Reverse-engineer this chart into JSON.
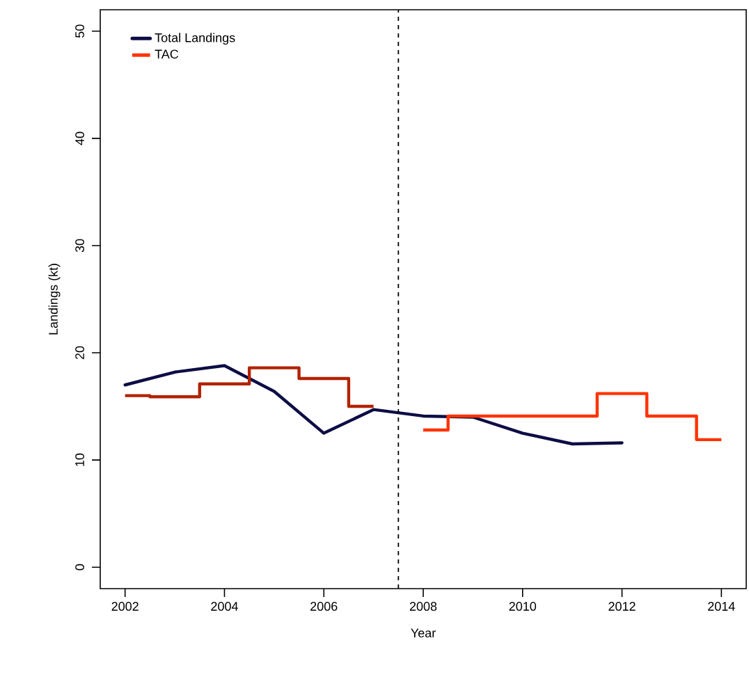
{
  "chart_data": {
    "type": "line",
    "xlabel": "Year",
    "ylabel": "Landings (kt)",
    "xlim": [
      2001.5,
      2014.5
    ],
    "ylim": [
      -2,
      52
    ],
    "xticks": [
      2002,
      2004,
      2006,
      2008,
      2010,
      2012,
      2014
    ],
    "yticks": [
      0,
      10,
      20,
      30,
      40,
      50
    ],
    "legend": "top left",
    "series": [
      {
        "name": "Total Landings",
        "color": "#0d0d45",
        "x": [
          2002,
          2003,
          2004,
          2005,
          2006,
          2007,
          2008,
          2009,
          2010,
          2011,
          2012
        ],
        "values": [
          17.0,
          18.2,
          18.8,
          16.4,
          12.5,
          14.7,
          14.1,
          14.0,
          12.5,
          11.5,
          11.6
        ]
      },
      {
        "type": "step",
        "color": "#b22200",
        "x": [
          2002,
          2003,
          2004,
          2005,
          2006,
          2007
        ],
        "values": [
          16.0,
          15.9,
          17.1,
          18.6,
          17.6,
          15.0
        ]
      },
      {
        "name": "TAC",
        "type": "step",
        "color": "#ff3300",
        "x": [
          2008,
          2009,
          2010,
          2011,
          2012,
          2013,
          2014
        ],
        "values": [
          12.8,
          14.1,
          14.1,
          14.1,
          16.2,
          14.1,
          11.9
        ]
      }
    ],
    "ref_lines": [
      {
        "axis": "x",
        "value": 2007.5,
        "line_style": "dashed",
        "color": "#000000"
      }
    ]
  }
}
